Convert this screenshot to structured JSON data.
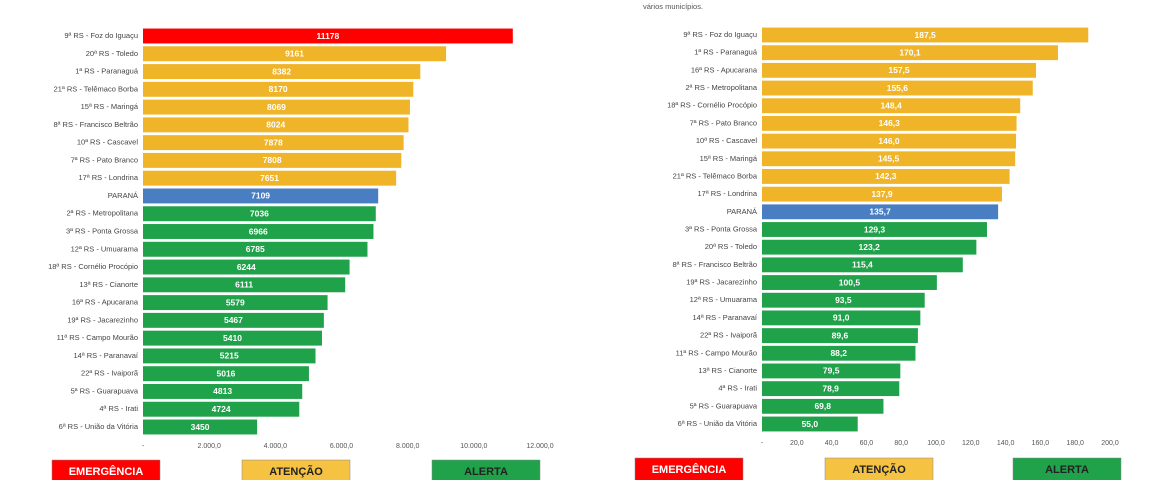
{
  "chart_data": [
    {
      "type": "bar",
      "orientation": "horizontal",
      "categories": [
        "9ª RS - Foz do Iguaçu",
        "20ª RS - Toledo",
        "1ª RS - Paranaguá",
        "21ª RS - Telêmaco Borba",
        "15ª RS - Maringá",
        "8ª RS - Francisco Beltrão",
        "10ª RS - Cascavel",
        "7ª RS - Pato Branco",
        "17ª RS - Londrina",
        "PARANÁ",
        "2ª RS - Metropolitana",
        "3ª RS - Ponta Grossa",
        "12ª RS - Umuarama",
        "18ª RS - Cornélio Procópio",
        "13ª RS - Cianorte",
        "16ª RS - Apucarana",
        "19ª RS - Jacarezinho",
        "11ª RS - Campo Mourão",
        "14ª RS - Paranavaí",
        "22ª RS - Ivaiporã",
        "5ª RS - Guarapuava",
        "4ª RS - Irati",
        "6ª RS - União da Vitória"
      ],
      "values": [
        11178,
        9161,
        8382,
        8170,
        8069,
        8024,
        7878,
        7808,
        7651,
        7109,
        7036,
        6966,
        6785,
        6244,
        6111,
        5579,
        5467,
        5410,
        5215,
        5016,
        4813,
        4724,
        3450
      ],
      "colors": [
        "#ff0000",
        "#f0b429",
        "#f0b429",
        "#f0b429",
        "#f0b429",
        "#f0b429",
        "#f0b429",
        "#f0b429",
        "#f0b429",
        "#4a7ec2",
        "#20a24b",
        "#20a24b",
        "#20a24b",
        "#20a24b",
        "#20a24b",
        "#20a24b",
        "#20a24b",
        "#20a24b",
        "#20a24b",
        "#20a24b",
        "#20a24b",
        "#20a24b",
        "#20a24b"
      ],
      "xlim": [
        0,
        12000
      ],
      "xticks": [
        {
          "value": 0,
          "label": "-"
        },
        {
          "value": 2000,
          "label": "2.000,0"
        },
        {
          "value": 4000,
          "label": "4.000,0"
        },
        {
          "value": 6000,
          "label": "6.000,0"
        },
        {
          "value": 8000,
          "label": "8.000,0"
        },
        {
          "value": 10000,
          "label": "10.000,0"
        },
        {
          "value": 12000,
          "label": "12.000,0"
        }
      ],
      "legend": [
        {
          "name": "EMERGÊNCIA",
          "color": "#ff0000"
        },
        {
          "name": "ATENÇÃO",
          "color": "#f5c242"
        },
        {
          "name": "ALERTA",
          "color": "#20a24b"
        }
      ]
    },
    {
      "type": "bar",
      "orientation": "horizontal",
      "note": "vários municípios.",
      "categories": [
        "9ª RS - Foz do Iguaçu",
        "1ª RS - Paranaguá",
        "16ª RS - Apucarana",
        "2ª RS - Metropolitana",
        "18ª RS - Cornélio Procópio",
        "7ª RS - Pato Branco",
        "10ª RS - Cascavel",
        "15ª RS - Maringá",
        "21ª RS - Telêmaco Borba",
        "17ª RS - Londrina",
        "PARANÁ",
        "3ª RS - Ponta Grossa",
        "20ª RS - Toledo",
        "8ª RS - Francisco Beltrão",
        "19ª RS - Jacarezinho",
        "12ª RS - Umuarama",
        "14ª RS - Paranavaí",
        "22ª RS - Ivaiporã",
        "11ª RS - Campo Mourão",
        "13ª RS - Cianorte",
        "4ª RS - Irati",
        "5ª RS - Guarapuava",
        "6ª RS - União da Vitória"
      ],
      "values": [
        187.5,
        170.1,
        157.5,
        155.6,
        148.4,
        146.3,
        146.0,
        145.5,
        142.3,
        137.9,
        135.7,
        129.3,
        123.2,
        115.4,
        100.5,
        93.5,
        91.0,
        89.6,
        88.2,
        79.5,
        78.9,
        69.8,
        55.0
      ],
      "value_labels": [
        "187,5",
        "170,1",
        "157,5",
        "155,6",
        "148,4",
        "146,3",
        "146,0",
        "145,5",
        "142,3",
        "137,9",
        "135,7",
        "129,3",
        "123,2",
        "115,4",
        "100,5",
        "93,5",
        "91,0",
        "89,6",
        "88,2",
        "79,5",
        "78,9",
        "69,8",
        "55,0"
      ],
      "colors": [
        "#f0b429",
        "#f0b429",
        "#f0b429",
        "#f0b429",
        "#f0b429",
        "#f0b429",
        "#f0b429",
        "#f0b429",
        "#f0b429",
        "#f0b429",
        "#4a7ec2",
        "#20a24b",
        "#20a24b",
        "#20a24b",
        "#20a24b",
        "#20a24b",
        "#20a24b",
        "#20a24b",
        "#20a24b",
        "#20a24b",
        "#20a24b",
        "#20a24b",
        "#20a24b"
      ],
      "xlim": [
        0,
        200
      ],
      "xticks": [
        {
          "value": 0,
          "label": "-"
        },
        {
          "value": 20,
          "label": "20,0"
        },
        {
          "value": 40,
          "label": "40,0"
        },
        {
          "value": 60,
          "label": "60,0"
        },
        {
          "value": 80,
          "label": "80,0"
        },
        {
          "value": 100,
          "label": "100,0"
        },
        {
          "value": 120,
          "label": "120,0"
        },
        {
          "value": 140,
          "label": "140,0"
        },
        {
          "value": 160,
          "label": "160,0"
        },
        {
          "value": 180,
          "label": "180,0"
        },
        {
          "value": 200,
          "label": "200,0"
        }
      ],
      "legend": [
        {
          "name": "EMERGÊNCIA",
          "color": "#ff0000"
        },
        {
          "name": "ATENÇÃO",
          "color": "#f5c242"
        },
        {
          "name": "ALERTA",
          "color": "#20a24b"
        }
      ]
    }
  ]
}
